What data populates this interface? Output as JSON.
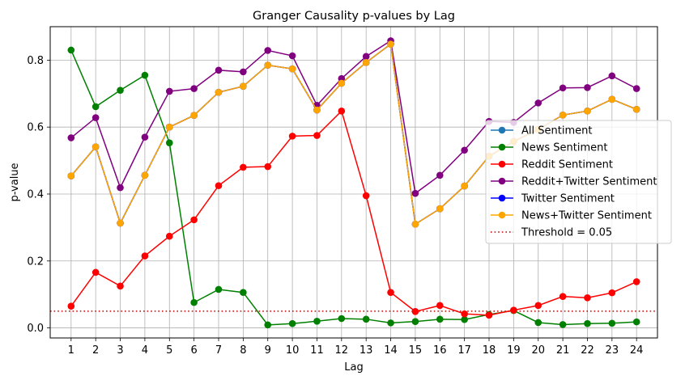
{
  "chart_data": {
    "type": "line",
    "title": "Granger Causality p-values by Lag",
    "xlabel": "Lag",
    "ylabel": "p-value",
    "x": [
      1,
      2,
      3,
      4,
      5,
      6,
      7,
      8,
      9,
      10,
      11,
      12,
      13,
      14,
      15,
      16,
      17,
      18,
      19,
      20,
      21,
      22,
      23,
      24
    ],
    "ylim": [
      -0.03,
      0.9
    ],
    "yticks": [
      0.0,
      0.2,
      0.4,
      0.6,
      0.8
    ],
    "ytick_labels": [
      "0.0",
      "0.2",
      "0.4",
      "0.6",
      "0.8"
    ],
    "grid": true,
    "legend_position": "center-right",
    "series": [
      {
        "name": "All Sentiment",
        "color": "#1f77b4",
        "values": [
          0.454,
          0.541,
          0.313,
          0.456,
          0.6,
          0.635,
          0.704,
          0.722,
          0.785,
          0.774,
          0.651,
          0.731,
          0.793,
          0.848,
          0.31,
          0.356,
          0.424,
          0.513,
          0.557,
          0.593,
          0.636,
          0.648,
          0.683,
          0.653
        ]
      },
      {
        "name": "News Sentiment",
        "color": "#008000",
        "values": [
          0.83,
          0.661,
          0.71,
          0.755,
          0.553,
          0.076,
          0.115,
          0.106,
          0.009,
          0.013,
          0.02,
          0.028,
          0.026,
          0.015,
          0.019,
          0.026,
          0.025,
          0.04,
          0.052,
          0.016,
          0.01,
          0.013,
          0.014,
          0.018
        ]
      },
      {
        "name": "Reddit Sentiment",
        "color": "#ff0000",
        "values": [
          0.065,
          0.166,
          0.125,
          0.215,
          0.274,
          0.323,
          0.425,
          0.48,
          0.482,
          0.573,
          0.575,
          0.648,
          0.395,
          0.106,
          0.049,
          0.067,
          0.042,
          0.038,
          0.053,
          0.067,
          0.094,
          0.09,
          0.105,
          0.138
        ]
      },
      {
        "name": "Reddit+Twitter Sentiment",
        "color": "#800080",
        "values": [
          0.568,
          0.628,
          0.419,
          0.57,
          0.707,
          0.715,
          0.77,
          0.765,
          0.829,
          0.813,
          0.665,
          0.745,
          0.811,
          0.858,
          0.402,
          0.456,
          0.531,
          0.617,
          0.614,
          0.672,
          0.717,
          0.718,
          0.753,
          0.715
        ]
      },
      {
        "name": "Twitter Sentiment",
        "color": "#0000ff",
        "values": [
          0.454,
          0.541,
          0.313,
          0.456,
          0.6,
          0.635,
          0.704,
          0.722,
          0.785,
          0.774,
          0.651,
          0.731,
          0.793,
          0.848,
          0.31,
          0.356,
          0.424,
          0.513,
          0.557,
          0.593,
          0.636,
          0.648,
          0.683,
          0.653
        ]
      },
      {
        "name": "News+Twitter Sentiment",
        "color": "#ffa500",
        "values": [
          0.454,
          0.541,
          0.313,
          0.456,
          0.6,
          0.635,
          0.704,
          0.722,
          0.785,
          0.774,
          0.651,
          0.731,
          0.793,
          0.848,
          0.31,
          0.356,
          0.424,
          0.513,
          0.557,
          0.593,
          0.636,
          0.648,
          0.683,
          0.653
        ]
      }
    ],
    "threshold": {
      "name": "Threshold = 0.05",
      "value": 0.05,
      "color": "#cc0000"
    }
  }
}
